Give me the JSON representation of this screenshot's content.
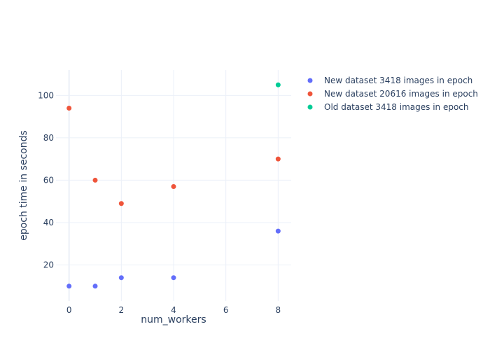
{
  "chart_data": {
    "type": "scatter",
    "xlabel": "num_workers",
    "ylabel": "epoch time in seconds",
    "xlim": [
      -0.5,
      8.5
    ],
    "ylim": [
      3,
      112
    ],
    "xticks": [
      0,
      2,
      4,
      6,
      8
    ],
    "yticks": [
      20,
      40,
      60,
      80,
      100
    ],
    "grid": true,
    "legend_position": "top-right",
    "series": [
      {
        "name": "New dataset 3418 images in epoch",
        "color": "#636efa",
        "points": [
          [
            0,
            10
          ],
          [
            1,
            10
          ],
          [
            2,
            14
          ],
          [
            4,
            14
          ],
          [
            8,
            36
          ]
        ]
      },
      {
        "name": "New dataset 20616 images in epoch",
        "color": "#ef553b",
        "points": [
          [
            0,
            94
          ],
          [
            1,
            60
          ],
          [
            2,
            49
          ],
          [
            4,
            57
          ],
          [
            8,
            70
          ]
        ]
      },
      {
        "name": "Old dataset 3418 images in epoch",
        "color": "#00cc96",
        "points": [
          [
            8,
            105
          ]
        ]
      }
    ]
  }
}
